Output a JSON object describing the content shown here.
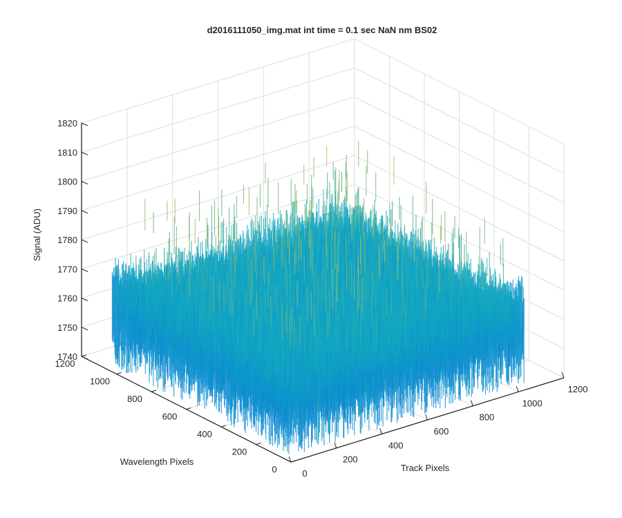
{
  "chart_data": {
    "type": "surface",
    "title": "d2016111050_img.mat int time = 0.1 sec  NaN nm BS02",
    "xlabel": "Track Pixels",
    "ylabel": "Wavelength Pixels",
    "zlabel": "Signal (ADU)",
    "xlim": [
      0,
      1200
    ],
    "ylim": [
      0,
      1200
    ],
    "zlim": [
      1740,
      1820
    ],
    "x_ticks": [
      0,
      200,
      400,
      600,
      800,
      1000,
      1200
    ],
    "y_ticks": [
      0,
      200,
      400,
      600,
      800,
      1000,
      1200
    ],
    "z_ticks": [
      1740,
      1750,
      1760,
      1770,
      1780,
      1790,
      1800,
      1810,
      1820
    ],
    "grid": true,
    "colormap": "parula",
    "surface": {
      "x_range": [
        0,
        1024
      ],
      "y_range": [
        0,
        1024
      ],
      "signal_mean": 1768,
      "signal_noise_range": [
        1748,
        1805
      ]
    }
  }
}
